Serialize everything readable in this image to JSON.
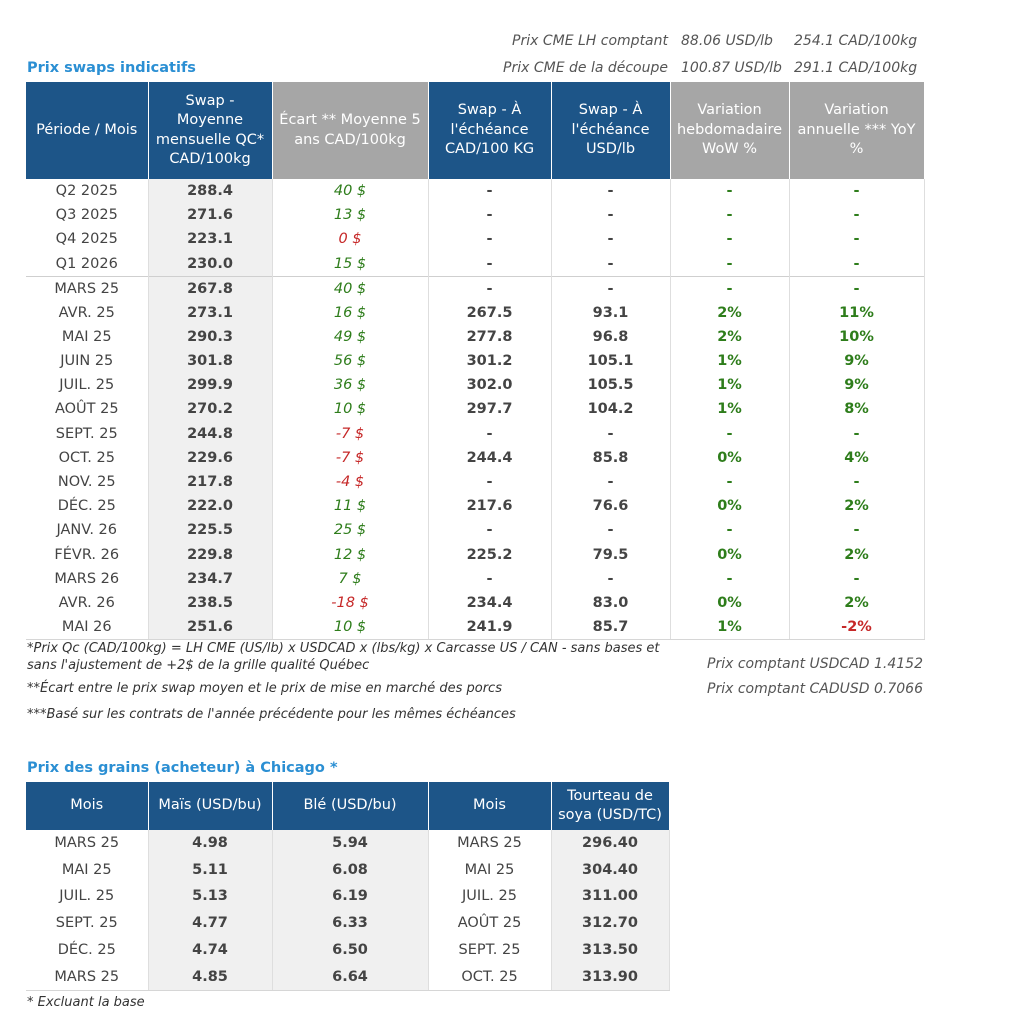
{
  "cme": {
    "comptant_label": "Prix CME LH comptant",
    "comptant_usd": "88.06 USD/lb",
    "comptant_cad": "254.1 CAD/100kg",
    "decoupe_label": "Prix CME de la découpe",
    "decoupe_usd": "100.87 USD/lb",
    "decoupe_cad": "291.1 CAD/100kg"
  },
  "swaps": {
    "title": "Prix swaps indicatifs",
    "headers": [
      "Période / Mois",
      "Swap - Moyenne mensuelle QC* CAD/100kg",
      "Écart ** Moyenne 5 ans CAD/100kg",
      "Swap - À l'échéance CAD/100 KG",
      "Swap - À l'échéance USD/lb",
      "Variation hebdomadaire WoW %",
      "Variation annuelle *** YoY %"
    ],
    "rows": [
      [
        "Q2 2025",
        "288.4",
        "40 $",
        "-",
        "-",
        "-",
        "-"
      ],
      [
        "Q3 2025",
        "271.6",
        "13 $",
        "-",
        "-",
        "-",
        "-"
      ],
      [
        "Q4 2025",
        "223.1",
        "0 $",
        "-",
        "-",
        "-",
        "-"
      ],
      [
        "Q1 2026",
        "230.0",
        "15 $",
        "-",
        "-",
        "-",
        "-"
      ],
      [
        "MARS 25",
        "267.8",
        "40 $",
        "-",
        "-",
        "-",
        "-"
      ],
      [
        "AVR. 25",
        "273.1",
        "16 $",
        "267.5",
        "93.1",
        "2%",
        "11%"
      ],
      [
        "MAI 25",
        "290.3",
        "49 $",
        "277.8",
        "96.8",
        "2%",
        "10%"
      ],
      [
        "JUIN 25",
        "301.8",
        "56 $",
        "301.2",
        "105.1",
        "1%",
        "9%"
      ],
      [
        "JUIL. 25",
        "299.9",
        "36 $",
        "302.0",
        "105.5",
        "1%",
        "9%"
      ],
      [
        "AOÛT 25",
        "270.2",
        "10 $",
        "297.7",
        "104.2",
        "1%",
        "8%"
      ],
      [
        "SEPT. 25",
        "244.8",
        "-7 $",
        "-",
        "-",
        "-",
        "-"
      ],
      [
        "OCT. 25",
        "229.6",
        "-7 $",
        "244.4",
        "85.8",
        "0%",
        "4%"
      ],
      [
        "NOV. 25",
        "217.8",
        "-4 $",
        "-",
        "-",
        "-",
        "-"
      ],
      [
        "DÉC. 25",
        "222.0",
        "11 $",
        "217.6",
        "76.6",
        "0%",
        "2%"
      ],
      [
        "JANV. 26",
        "225.5",
        "25 $",
        "-",
        "-",
        "-",
        "-"
      ],
      [
        "FÉVR. 26",
        "229.8",
        "12 $",
        "225.2",
        "79.5",
        "0%",
        "2%"
      ],
      [
        "MARS 26",
        "234.7",
        "7 $",
        "-",
        "-",
        "-",
        "-"
      ],
      [
        "AVR. 26",
        "238.5",
        "-18 $",
        "234.4",
        "83.0",
        "0%",
        "2%"
      ],
      [
        "MAI 26",
        "251.6",
        "10 $",
        "241.9",
        "85.7",
        "1%",
        "-2%"
      ]
    ]
  },
  "notes": {
    "note1_line1": "*Prix Qc (CAD/100kg) = LH CME (US/lb) x USDCAD x (lbs/kg) x Carcasse US / CAN - sans bases et",
    "note1_line2": "sans l'ajustement de +2$ de la grille qualité Québec",
    "note2": "**Écart entre le prix swap moyen et le prix de mise en marché des porcs",
    "note3": "***Basé sur les contrats de l'année précédente pour les mêmes échéances",
    "rate1": "Prix comptant USDCAD 1.4152",
    "rate2": "Prix comptant CADUSD 0.7066"
  },
  "grains": {
    "title": "Prix des grains (acheteur) à Chicago *",
    "headers": [
      "Mois",
      "Maïs (USD/bu)",
      "Blé (USD/bu)",
      "Mois",
      "Tourteau de soya (USD/TC)"
    ],
    "rows": [
      [
        "MARS 25",
        "4.98",
        "5.94",
        "MARS 25",
        "296.40"
      ],
      [
        "MAI 25",
        "5.11",
        "6.08",
        "MAI 25",
        "304.40"
      ],
      [
        "JUIL. 25",
        "5.13",
        "6.19",
        "JUIL. 25",
        "311.00"
      ],
      [
        "SEPT. 25",
        "4.77",
        "6.33",
        "AOÛT 25",
        "312.70"
      ],
      [
        "DÉC. 25",
        "4.74",
        "6.50",
        "SEPT. 25",
        "313.50"
      ],
      [
        "MARS 25",
        "4.85",
        "6.64",
        "OCT. 25",
        "313.90"
      ]
    ],
    "footnote": "* Excluant la base"
  },
  "colors": {
    "header_blue": "#1d5588",
    "header_grey": "#a6a6a6",
    "title_blue": "#2b8fd3",
    "positive_green": "#2e7d1b",
    "negative_red": "#c62828"
  }
}
